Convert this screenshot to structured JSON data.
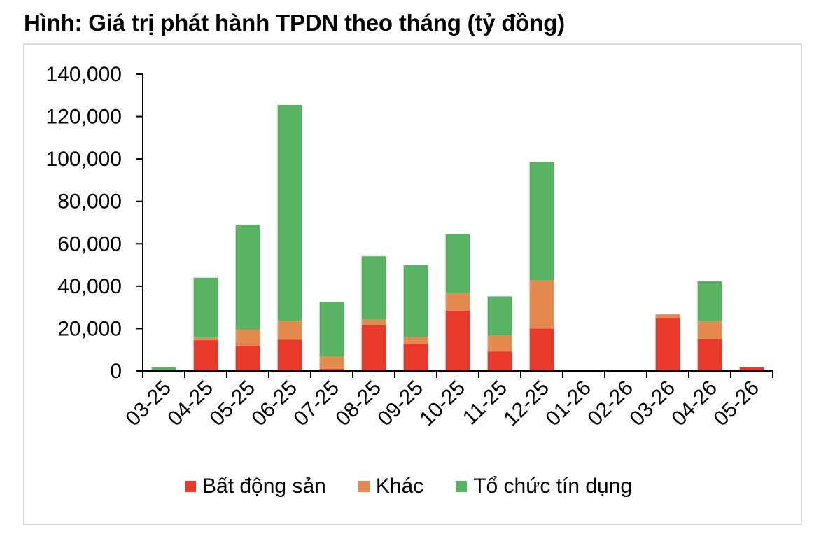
{
  "title": "Hình: Giá trị phát hành TPDN theo tháng (tỷ đồng)",
  "chart_data": {
    "type": "bar",
    "stacked": true,
    "categories": [
      "03-25",
      "04-25",
      "05-25",
      "06-25",
      "07-25",
      "08-25",
      "09-25",
      "10-25",
      "11-25",
      "12-25",
      "01-26",
      "02-26",
      "03-26",
      "04-26",
      "05-26"
    ],
    "series": [
      {
        "name": "Bất động sản",
        "color": "#e8392b",
        "values": [
          0,
          14500,
          12000,
          14700,
          1000,
          21500,
          12800,
          28500,
          9200,
          20000,
          0,
          0,
          25000,
          15000,
          1800
        ]
      },
      {
        "name": "Khác",
        "color": "#e58a4e",
        "values": [
          0,
          1300,
          7500,
          9000,
          5800,
          2800,
          3300,
          8200,
          7400,
          22700,
          0,
          0,
          1700,
          8500,
          0
        ]
      },
      {
        "name": "Tổ chức tín dụng",
        "color": "#58b363",
        "values": [
          1800,
          28200,
          49500,
          101800,
          25600,
          29800,
          33900,
          27900,
          18600,
          55800,
          0,
          0,
          0,
          18800,
          0
        ]
      }
    ],
    "ylim": [
      0,
      140000
    ],
    "yticks": [
      0,
      20000,
      40000,
      60000,
      80000,
      100000,
      120000,
      140000
    ],
    "ytick_labels": [
      "0",
      "20,000",
      "40,000",
      "60,000",
      "80,000",
      "100,000",
      "120,000",
      "140,000"
    ],
    "grid": false,
    "legend_position": "bottom"
  }
}
